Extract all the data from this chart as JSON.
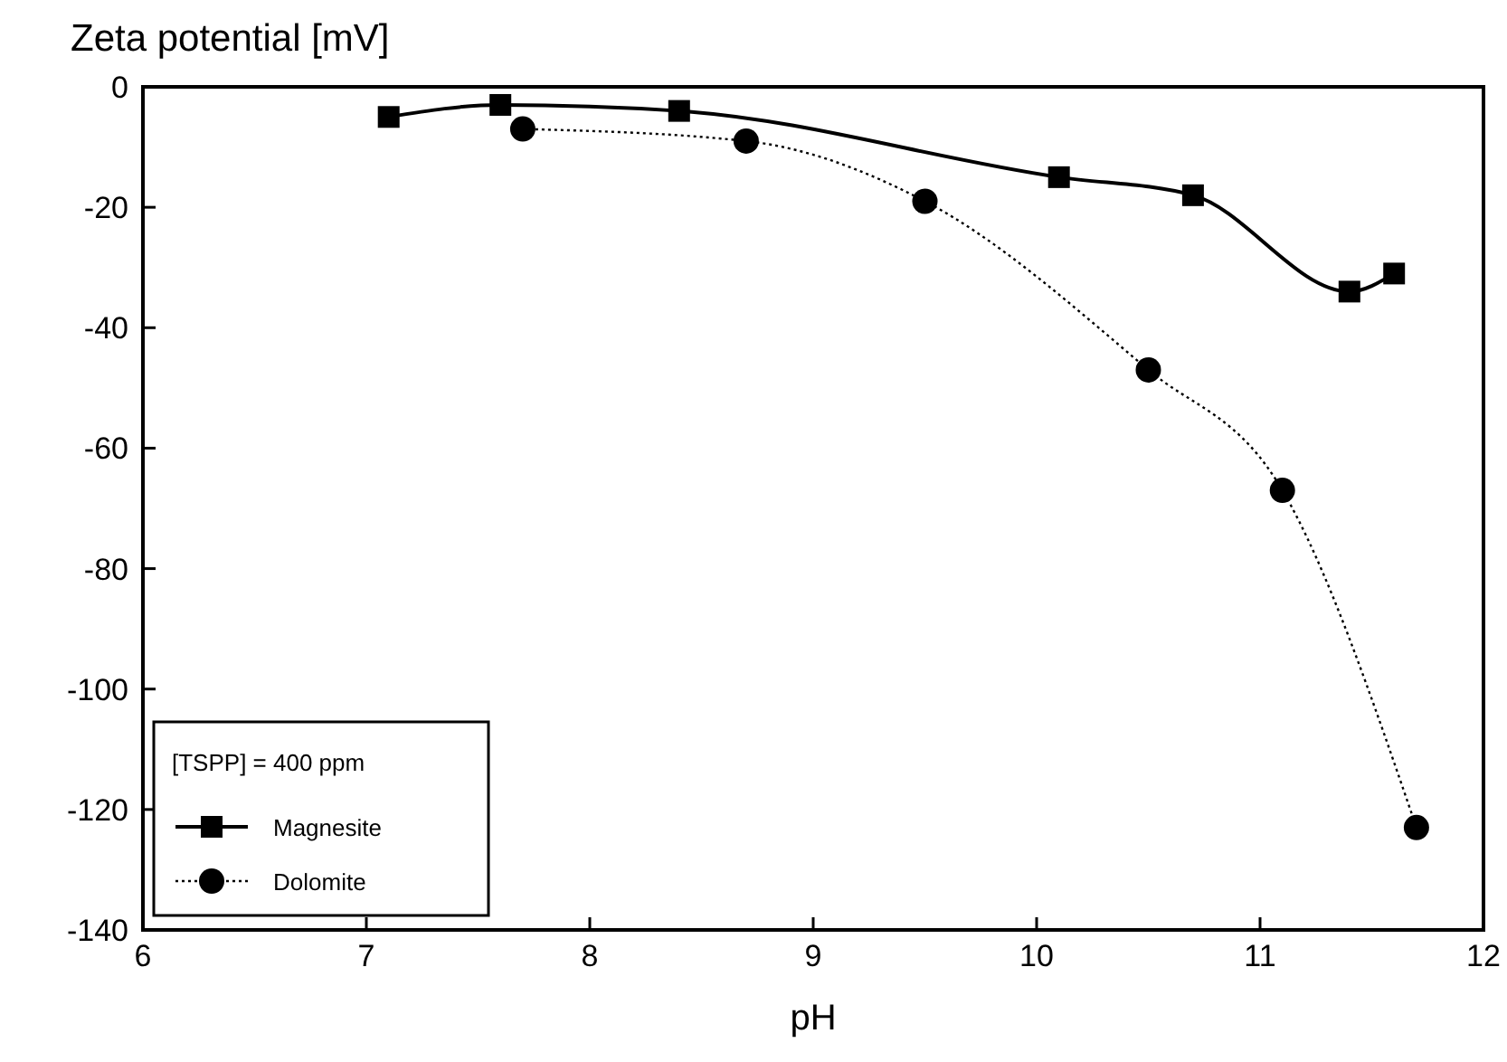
{
  "chart_data": {
    "type": "line",
    "title": "Zeta potential [mV]",
    "xlabel": "pH",
    "legend_title": "[TSPP] = 400 ppm",
    "legend": "bottom left",
    "grid": false,
    "xlim": [
      6,
      12
    ],
    "xticks": [
      6,
      7,
      8,
      9,
      10,
      11,
      12
    ],
    "ylim": [
      -140,
      0
    ],
    "yticks": [
      -140,
      -120,
      -100,
      -80,
      -60,
      -40,
      -20,
      0
    ],
    "series": [
      {
        "name": "Magnesite",
        "color": "#000000",
        "marker": "square",
        "line_style": "solid",
        "x": [
          7.1,
          7.6,
          8.4,
          10.1,
          10.7,
          11.4,
          11.6
        ],
        "values": [
          -5,
          -3,
          -4,
          -15,
          -18,
          -34,
          -31
        ]
      },
      {
        "name": "Dolomite",
        "color": "#000000",
        "marker": "circle",
        "line_style": "dotted",
        "x": [
          7.7,
          8.7,
          9.5,
          10.5,
          11.1,
          11.7
        ],
        "values": [
          -7,
          -9,
          -19,
          -47,
          -67,
          -123
        ]
      }
    ]
  }
}
